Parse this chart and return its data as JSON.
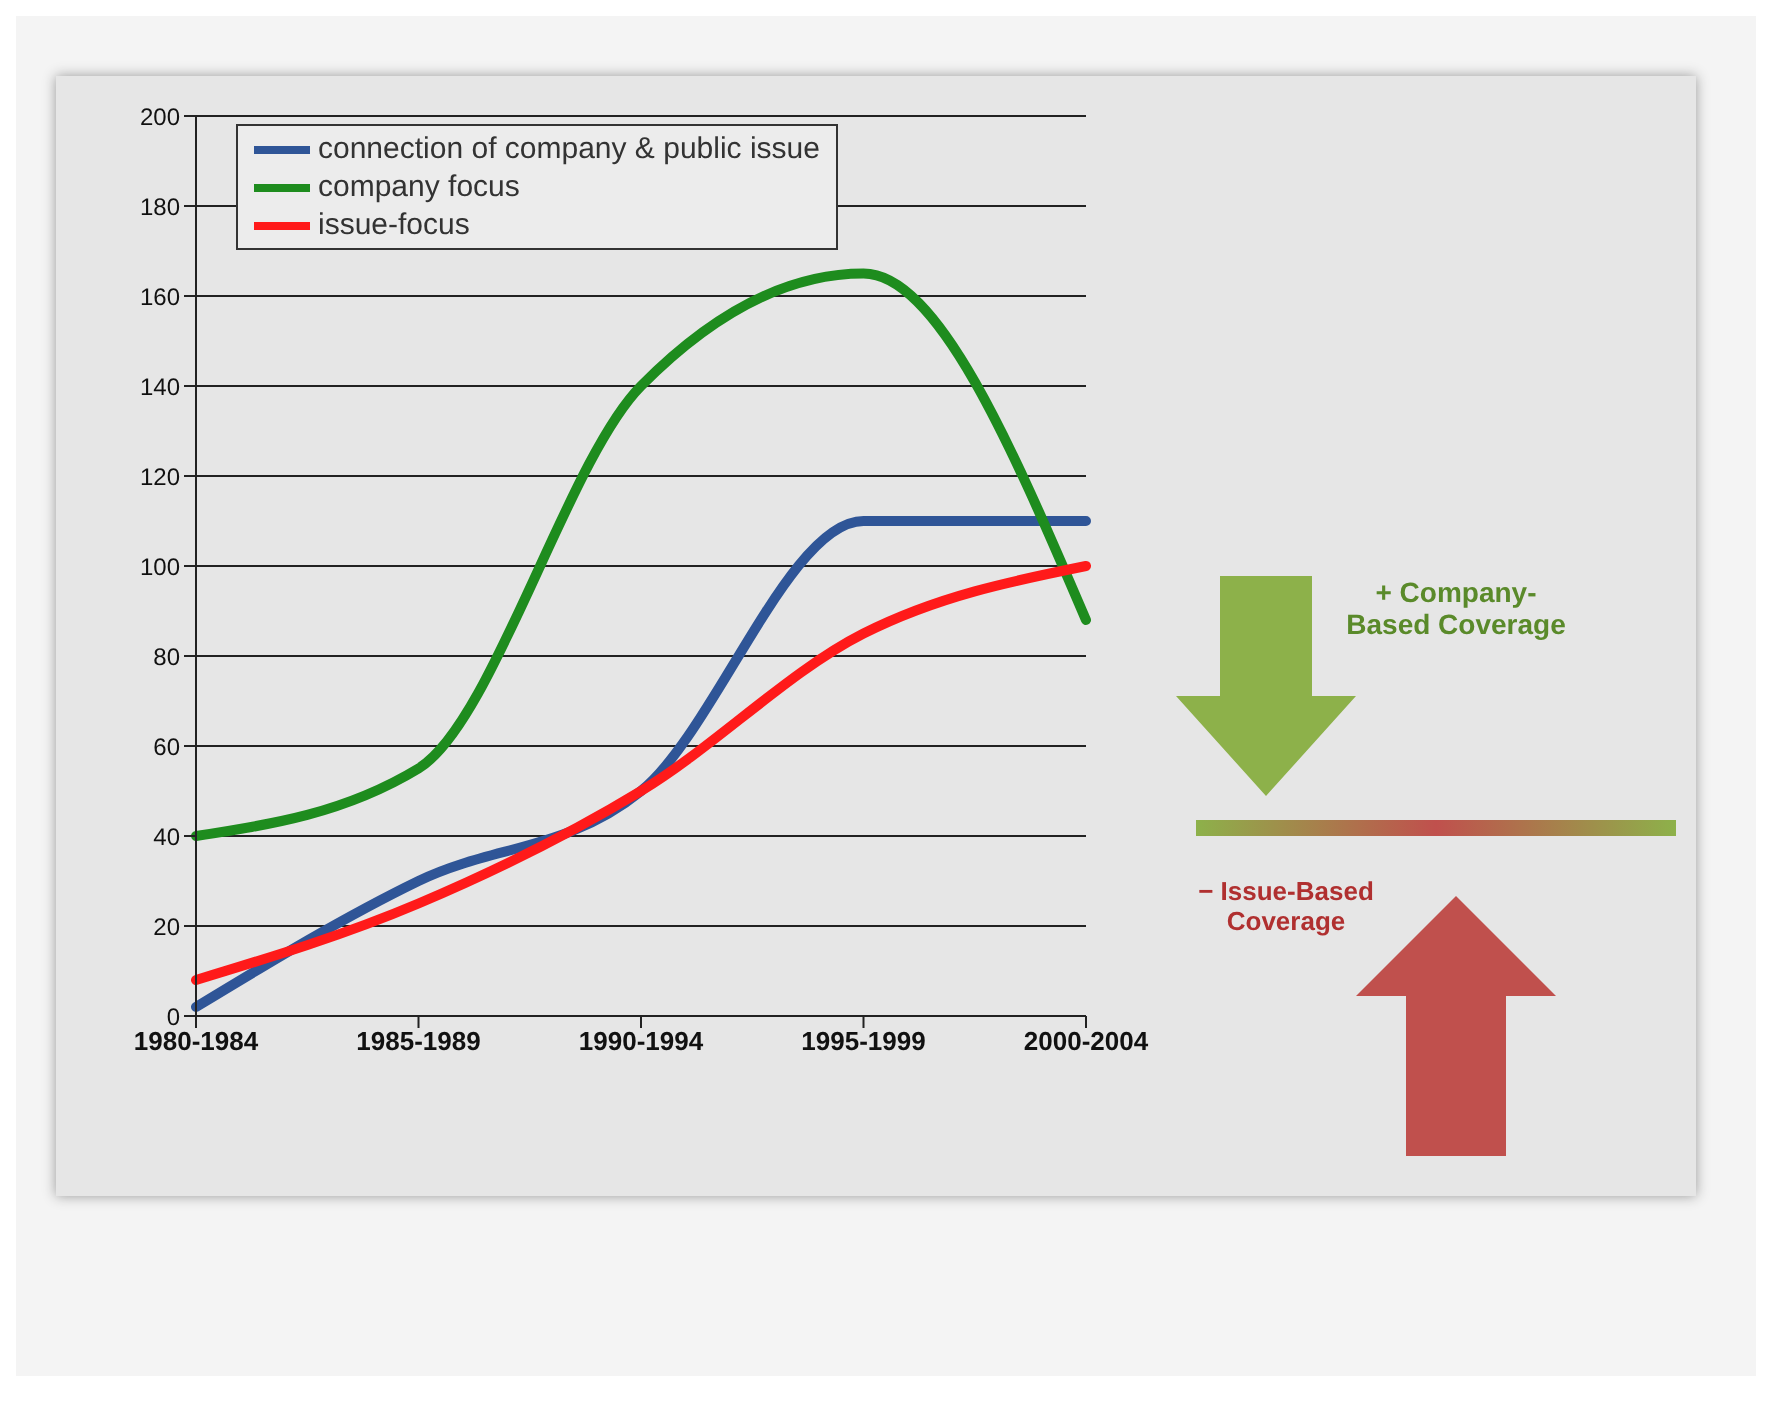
{
  "chart_data": {
    "type": "line",
    "categories": [
      "1980-1984",
      "1985-1989",
      "1990-1994",
      "1995-1999",
      "2000-2004"
    ],
    "series": [
      {
        "name": "connection of company & public issue",
        "color": "#2f5597",
        "values": [
          2,
          30,
          50,
          110,
          110
        ]
      },
      {
        "name": "company focus",
        "color": "#1e8c1e",
        "values": [
          40,
          55,
          140,
          165,
          88
        ]
      },
      {
        "name": "issue-focus",
        "color": "#ff1a1a",
        "values": [
          8,
          25,
          50,
          85,
          100
        ]
      }
    ],
    "ylim": [
      0,
      200
    ],
    "yticks": [
      0,
      20,
      40,
      60,
      80,
      100,
      120,
      140,
      160,
      180,
      200
    ],
    "grid": "y",
    "legend": "top left",
    "marker": "none",
    "line_style": "solid",
    "annotations": [
      "+ Company-Based Coverage",
      "− Issue-Based Coverage"
    ]
  }
}
